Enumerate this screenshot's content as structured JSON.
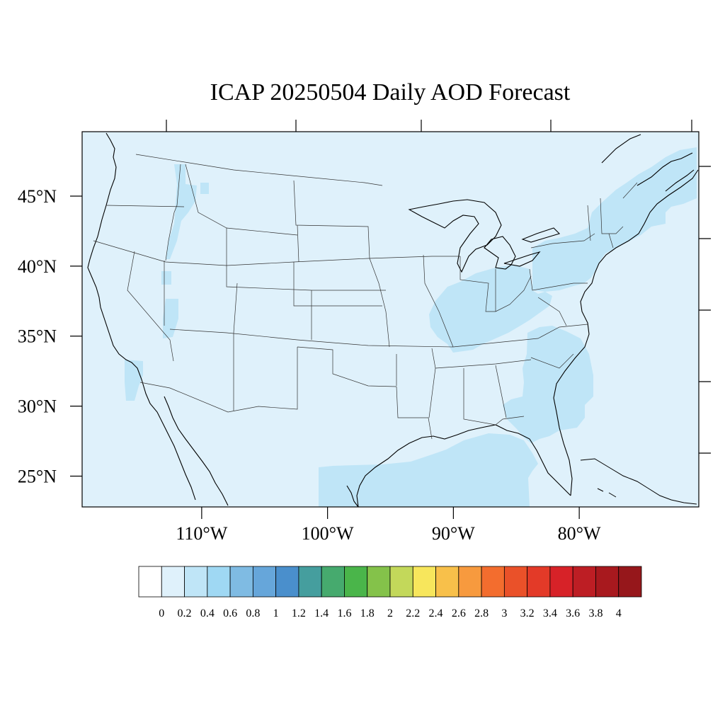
{
  "title": "ICAP 20250504 Daily AOD Forecast",
  "colors": {
    "background_aod": "#dff1fb",
    "enhanced_aod": "#bfe5f7",
    "state_line": "#333333",
    "coast_line": "#000000"
  },
  "map": {
    "lon_range": [
      -119.5,
      -70.5
    ],
    "lat_range": [
      22.8,
      49.6
    ],
    "lat_ticks": [
      {
        "value": 45,
        "label": "45°N"
      },
      {
        "value": 40,
        "label": "40°N"
      },
      {
        "value": 35,
        "label": "35°N"
      },
      {
        "value": 30,
        "label": "30°N"
      },
      {
        "value": 25,
        "label": "25°N"
      }
    ],
    "lon_ticks": [
      {
        "value": -110,
        "label": "110°W"
      },
      {
        "value": -100,
        "label": "100°W"
      },
      {
        "value": -90,
        "label": "90°W"
      },
      {
        "value": -80,
        "label": "80°W"
      }
    ]
  },
  "colorbar": {
    "colors": [
      "#ffffff",
      "#dff1fb",
      "#bfe5f7",
      "#9fd8f3",
      "#7fbbe3",
      "#66a6da",
      "#4a8fcc",
      "#459e9e",
      "#46aa6e",
      "#4ab54a",
      "#84c24a",
      "#c3d85a",
      "#f7e65c",
      "#f8c04a",
      "#f79a3e",
      "#f36d2e",
      "#ea5129",
      "#e33a28",
      "#d72228",
      "#bd1e24",
      "#a8191e",
      "#96171b"
    ],
    "labels": [
      "0",
      "0.2",
      "0.4",
      "0.6",
      "0.8",
      "1",
      "1.2",
      "1.4",
      "1.6",
      "1.8",
      "2",
      "2.2",
      "2.4",
      "2.6",
      "2.8",
      "3",
      "3.2",
      "3.4",
      "3.6",
      "3.8",
      "4"
    ]
  }
}
